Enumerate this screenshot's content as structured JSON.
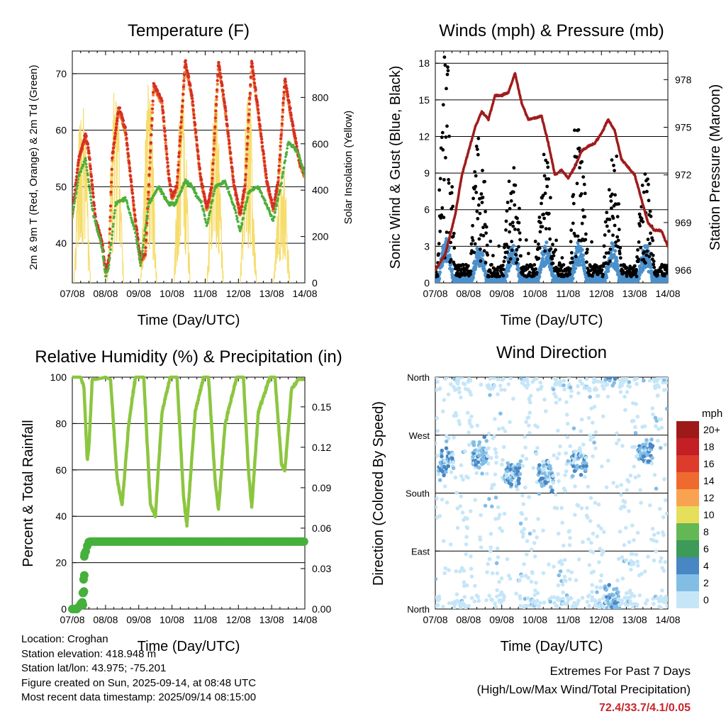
{
  "panels": {
    "temperature": {
      "title": "Temperature (F)",
      "ylabel_left": "2m & 9m T (Red, Orange) & 2m Td (Green)",
      "ylabel_right": "Solar Insolation (Yellow)",
      "xlabel": "Time (Day/UTC)"
    },
    "wind": {
      "title": "Winds (mph) & Pressure (mb)",
      "ylabel_left": "Sonic Wind & Gust (Blue, Black)",
      "ylabel_right": "Station Pressure (Maroon)",
      "xlabel": "Time (Day/UTC)"
    },
    "humidity": {
      "title": "Relative Humidity (%) & Precipitation (in)",
      "ylabel_left": "Percent & Total Rainfall",
      "xlabel": "Time (Day/UTC)"
    },
    "direction": {
      "title": "Wind Direction",
      "ylabel_left": "Direction (Colored By Speed)",
      "xlabel": "Time (Day/UTC)",
      "legend_title": "mph"
    }
  },
  "station_info": {
    "location": "Location: Croghan",
    "elevation": "Station elevation: 418.948 m",
    "latlon": "Station lat/lon: 43.975; -75.201",
    "created": "Figure created on Sun, 2025-09-14, at 08:48 UTC",
    "recent": "Most recent data timestamp: 2025/09/14 08:15:00"
  },
  "extremes": {
    "title": "Extremes For Past 7 Days",
    "subtitle": "(High/Low/Max Wind/Total Precipitation)",
    "values": "72.4/33.7/4.1/0.05"
  },
  "colors": {
    "temp_2m": "#d62f26",
    "temp_9m": "#f07f2a",
    "dewpoint": "#4daf3a",
    "insolation": "#f6dc6a",
    "wind": "#4a90cc",
    "gust": "#000000",
    "pressure": "#a01c1c",
    "rh": "#8cc63f",
    "precip": "#45b03c"
  },
  "chart_data": [
    {
      "type": "line",
      "id": "temperature",
      "x_ticks": [
        "07/08",
        "08/08",
        "09/08",
        "10/08",
        "11/08",
        "12/08",
        "13/08",
        "14/08"
      ],
      "xlim": [
        0,
        7
      ],
      "ylim": [
        33,
        74
      ],
      "yticks": [
        40,
        50,
        60,
        70
      ],
      "y2lim": [
        0,
        1000
      ],
      "y2ticks": [
        0,
        200,
        400,
        600,
        800
      ],
      "daily_max_temp": [
        59,
        64,
        69,
        72,
        72,
        72,
        69
      ],
      "daily_min_temp": [
        45,
        34,
        36,
        48,
        43,
        42,
        41
      ],
      "daily_max_insolation": [
        850,
        900,
        870,
        880,
        840,
        850,
        600
      ],
      "series": [
        {
          "name": "2m T",
          "x": [
            0,
            0.2,
            0.4,
            0.5,
            0.7,
            0.9,
            1.0,
            1.1,
            1.2,
            1.4,
            1.6,
            1.9,
            2.05,
            2.2,
            2.45,
            2.7,
            2.9,
            3.0,
            3.15,
            3.4,
            3.6,
            3.85,
            4.05,
            4.2,
            4.4,
            4.6,
            4.85,
            5.05,
            5.2,
            5.4,
            5.6,
            5.85,
            6.05,
            6.2,
            6.4,
            6.6,
            6.85,
            7.0
          ],
          "values": [
            45,
            55,
            59,
            56,
            44,
            40,
            35,
            37,
            55,
            64,
            60,
            44,
            37,
            38,
            68,
            65,
            52,
            48,
            50,
            72,
            66,
            52,
            46,
            50,
            72,
            64,
            51,
            45,
            50,
            72,
            63,
            51,
            46,
            51,
            69,
            62,
            54,
            52
          ]
        },
        {
          "name": "2m Td",
          "x": [
            0,
            0.2,
            0.4,
            0.6,
            0.9,
            1.0,
            1.1,
            1.3,
            1.6,
            1.9,
            2.05,
            2.3,
            2.6,
            2.9,
            3.1,
            3.4,
            3.6,
            3.9,
            4.05,
            4.3,
            4.6,
            4.9,
            5.05,
            5.3,
            5.6,
            5.9,
            6.05,
            6.3,
            6.5,
            6.8,
            7.0
          ],
          "values": [
            45,
            52,
            55,
            46,
            39,
            34,
            36,
            47,
            48,
            42,
            36,
            47,
            50,
            47,
            47,
            51,
            50,
            47,
            43,
            50,
            51,
            46,
            42,
            49,
            50,
            46,
            44,
            51,
            58,
            56,
            52
          ]
        },
        {
          "name": "Solar Insolation",
          "x": [
            0.15,
            0.3,
            0.45,
            1.15,
            1.3,
            1.45,
            2.15,
            2.3,
            2.45,
            3.15,
            3.3,
            3.45,
            4.15,
            4.3,
            4.45,
            5.15,
            5.3,
            5.45,
            6.15,
            6.3,
            6.45
          ],
          "values": [
            850,
            300,
            100,
            900,
            650,
            200,
            870,
            700,
            250,
            880,
            750,
            200,
            840,
            780,
            220,
            850,
            700,
            200,
            600,
            580,
            300
          ]
        }
      ]
    },
    {
      "type": "scatter",
      "id": "wind",
      "x_ticks": [
        "07/08",
        "08/08",
        "09/08",
        "10/08",
        "11/08",
        "12/08",
        "13/08",
        "14/08"
      ],
      "xlim": [
        0,
        7
      ],
      "ylim": [
        0,
        19
      ],
      "yticks": [
        0,
        3,
        6,
        9,
        12,
        15,
        18
      ],
      "y2lim": [
        965.2,
        979.8
      ],
      "y2ticks": [
        966,
        969,
        972,
        975,
        978
      ],
      "daily_gust_peak": [
        17,
        12,
        8.5,
        9,
        12,
        8.5,
        8
      ],
      "daily_wind_peak": [
        3.5,
        3,
        3,
        3,
        3,
        2.8,
        2.7
      ],
      "series": [
        {
          "name": "Station Pressure",
          "x": [
            0,
            0.3,
            0.6,
            0.8,
            1.0,
            1.2,
            1.4,
            1.6,
            1.8,
            2.0,
            2.2,
            2.4,
            2.6,
            2.8,
            3.0,
            3.2,
            3.4,
            3.6,
            3.8,
            4.0,
            4.2,
            4.4,
            4.6,
            4.8,
            5.0,
            5.2,
            5.4,
            5.6,
            5.8,
            6.0,
            6.2,
            6.4,
            6.6,
            6.8,
            7.0
          ],
          "values": [
            966,
            967,
            969.5,
            972,
            973.5,
            975,
            976,
            975.5,
            977,
            977,
            977.2,
            978.4,
            976.5,
            975.5,
            975.6,
            975.7,
            974,
            972,
            972.3,
            971.8,
            972.5,
            973.5,
            973.8,
            974,
            974.6,
            975.5,
            974.8,
            973,
            972.5,
            972,
            970.5,
            969,
            968.5,
            968.5,
            967.5
          ]
        }
      ]
    },
    {
      "type": "line",
      "id": "humidity",
      "x_ticks": [
        "07/08",
        "08/08",
        "09/08",
        "10/08",
        "11/08",
        "12/08",
        "13/08",
        "14/08"
      ],
      "xlim": [
        0,
        7
      ],
      "ylim": [
        0,
        100
      ],
      "yticks": [
        0,
        20,
        40,
        60,
        80,
        100
      ],
      "y2lim": [
        0,
        0.172
      ],
      "y2ticks": [
        "0.00",
        "0.03",
        "0.06",
        "0.09",
        "0.12",
        "0.15"
      ],
      "series": [
        {
          "name": "RH",
          "x": [
            0,
            0.25,
            0.35,
            0.45,
            0.5,
            0.6,
            0.7,
            1.0,
            1.15,
            1.35,
            1.5,
            1.7,
            1.9,
            2.05,
            2.15,
            2.35,
            2.5,
            2.7,
            2.95,
            3.15,
            3.35,
            3.45,
            3.7,
            3.95,
            4.1,
            4.3,
            4.4,
            4.6,
            4.95,
            5.15,
            5.3,
            5.4,
            5.6,
            5.95,
            6.1,
            6.3,
            6.4,
            6.6,
            6.8,
            7.0
          ],
          "values": [
            100,
            100,
            96,
            64,
            70,
            99,
            99,
            100,
            99,
            56,
            45,
            80,
            100,
            100,
            100,
            45,
            40,
            85,
            100,
            100,
            48,
            36,
            85,
            100,
            100,
            55,
            43,
            80,
            100,
            100,
            60,
            44,
            85,
            100,
            100,
            62,
            60,
            95,
            99,
            99
          ]
        },
        {
          "name": "Precipitation",
          "x": [
            0,
            0.1,
            0.15,
            0.2,
            0.25,
            0.28,
            0.32,
            0.35,
            0.38,
            0.42,
            0.5,
            1.0,
            2.0,
            3.0,
            4.0,
            5.0,
            6.0,
            7.0
          ],
          "values": [
            0,
            0,
            0,
            0.002,
            0.003,
            0.005,
            0.013,
            0.018,
            0.039,
            0.045,
            0.05,
            0.05,
            0.05,
            0.05,
            0.05,
            0.05,
            0.05,
            0.05
          ]
        }
      ]
    },
    {
      "type": "scatter",
      "id": "direction",
      "x_ticks": [
        "07/08",
        "08/08",
        "09/08",
        "10/08",
        "11/08",
        "12/08",
        "13/08",
        "14/08"
      ],
      "xlim": [
        0,
        7
      ],
      "ylim": [
        0,
        360
      ],
      "yticks": [
        0,
        90,
        180,
        270,
        360
      ],
      "ytick_labels": [
        "North",
        "East",
        "South",
        "West",
        "North"
      ],
      "legend": {
        "labels": [
          "20+",
          "18",
          "16",
          "14",
          "12",
          "10",
          "8",
          "6",
          "4",
          "2",
          "0"
        ],
        "colors": [
          "#9e1a1a",
          "#c31f24",
          "#dd3b2b",
          "#ef6a2f",
          "#f9a350",
          "#e6df5c",
          "#63b854",
          "#3d9a58",
          "#4886c4",
          "#82bde6",
          "#c6e6f8"
        ]
      },
      "dominant_directions_by_day": [
        230,
        240,
        210,
        210,
        230,
        15,
        240
      ]
    }
  ]
}
